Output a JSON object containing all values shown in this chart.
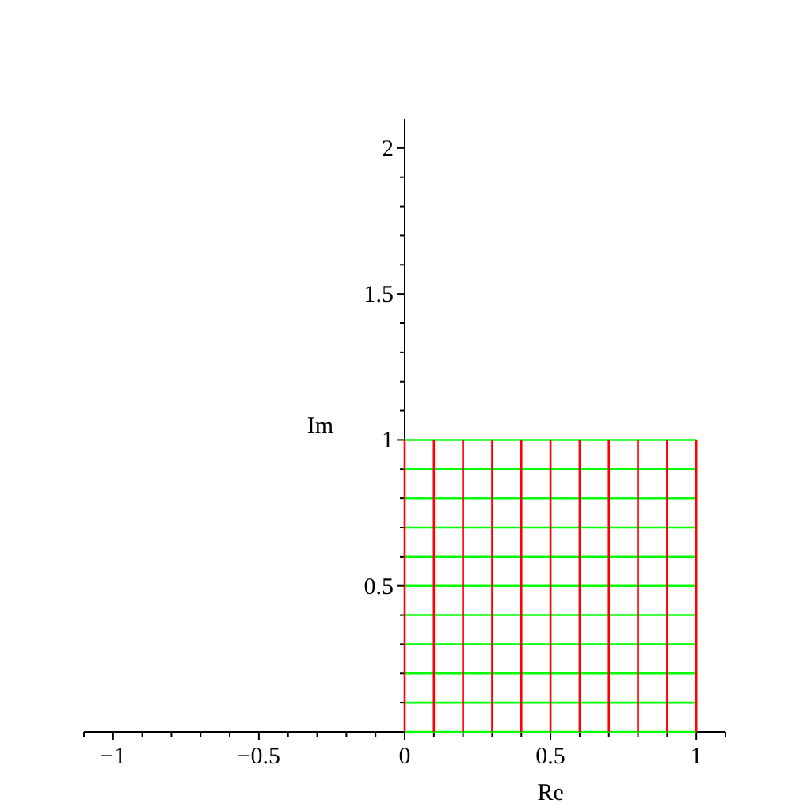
{
  "chart_data": {
    "type": "line",
    "xlabel": "Re",
    "ylabel": "Im",
    "xlim": [
      -1.1,
      1.1
    ],
    "ylim": [
      0,
      2.1
    ],
    "grid": false,
    "marker": "none",
    "line_style": "solid",
    "xticks": [
      {
        "value": -1.1,
        "label": null
      },
      {
        "value": -1,
        "label": "−1"
      },
      {
        "value": -0.9,
        "label": null
      },
      {
        "value": -0.8,
        "label": null
      },
      {
        "value": -0.7,
        "label": null
      },
      {
        "value": -0.6,
        "label": null
      },
      {
        "value": -0.5,
        "label": "−0.5"
      },
      {
        "value": -0.4,
        "label": null
      },
      {
        "value": -0.3,
        "label": null
      },
      {
        "value": -0.2,
        "label": null
      },
      {
        "value": -0.1,
        "label": null
      },
      0,
      {
        "value": 0.1,
        "label": null
      },
      {
        "value": 0.2,
        "label": null
      },
      {
        "value": 0.3,
        "label": null
      },
      {
        "value": 0.4,
        "label": null
      },
      0.5,
      {
        "value": 0.6,
        "label": null
      },
      {
        "value": 0.7,
        "label": null
      },
      {
        "value": 0.8,
        "label": null
      },
      {
        "value": 0.9,
        "label": null
      },
      1,
      {
        "value": 1.1,
        "label": null
      }
    ],
    "yticks": [
      {
        "value": 0.1,
        "label": null
      },
      {
        "value": 0.2,
        "label": null
      },
      {
        "value": 0.3,
        "label": null
      },
      {
        "value": 0.4,
        "label": null
      },
      0.5,
      {
        "value": 0.6,
        "label": null
      },
      {
        "value": 0.7,
        "label": null
      },
      {
        "value": 0.8,
        "label": null
      },
      {
        "value": 0.9,
        "label": null
      },
      1,
      {
        "value": 1.1,
        "label": null
      },
      {
        "value": 1.2,
        "label": null
      },
      {
        "value": 1.3,
        "label": null
      },
      {
        "value": 1.4,
        "label": null
      },
      1.5,
      {
        "value": 1.6,
        "label": null
      },
      {
        "value": 1.7,
        "label": null
      },
      {
        "value": 1.8,
        "label": null
      },
      {
        "value": 1.9,
        "label": null
      },
      2
    ],
    "series": [
      {
        "color": "#00ff00",
        "x": [
          0,
          1
        ],
        "values": [
          0,
          0
        ]
      },
      {
        "color": "#00ff00",
        "x": [
          0,
          1
        ],
        "values": [
          0.1,
          0.1
        ]
      },
      {
        "color": "#00ff00",
        "x": [
          0,
          1
        ],
        "values": [
          0.2,
          0.2
        ]
      },
      {
        "color": "#00ff00",
        "x": [
          0,
          1
        ],
        "values": [
          0.3,
          0.3
        ]
      },
      {
        "color": "#00ff00",
        "x": [
          0,
          1
        ],
        "values": [
          0.4,
          0.4
        ]
      },
      {
        "color": "#00ff00",
        "x": [
          0,
          1
        ],
        "values": [
          0.5,
          0.5
        ]
      },
      {
        "color": "#00ff00",
        "x": [
          0,
          1
        ],
        "values": [
          0.6,
          0.6
        ]
      },
      {
        "color": "#00ff00",
        "x": [
          0,
          1
        ],
        "values": [
          0.7,
          0.7
        ]
      },
      {
        "color": "#00ff00",
        "x": [
          0,
          1
        ],
        "values": [
          0.8,
          0.8
        ]
      },
      {
        "color": "#00ff00",
        "x": [
          0,
          1
        ],
        "values": [
          0.9,
          0.9
        ]
      },
      {
        "color": "#00ff00",
        "x": [
          0,
          1
        ],
        "values": [
          1,
          1
        ]
      },
      {
        "color": "#ff0000",
        "x": [
          0,
          0
        ],
        "values": [
          0,
          1
        ]
      },
      {
        "color": "#ff0000",
        "x": [
          0.1,
          0.1
        ],
        "values": [
          0,
          1
        ]
      },
      {
        "color": "#ff0000",
        "x": [
          0.2,
          0.2
        ],
        "values": [
          0,
          1
        ]
      },
      {
        "color": "#ff0000",
        "x": [
          0.3,
          0.3
        ],
        "values": [
          0,
          1
        ]
      },
      {
        "color": "#ff0000",
        "x": [
          0.4,
          0.4
        ],
        "values": [
          0,
          1
        ]
      },
      {
        "color": "#ff0000",
        "x": [
          0.5,
          0.5
        ],
        "values": [
          0,
          1
        ]
      },
      {
        "color": "#ff0000",
        "x": [
          0.6,
          0.6
        ],
        "values": [
          0,
          1
        ]
      },
      {
        "color": "#ff0000",
        "x": [
          0.7,
          0.7
        ],
        "values": [
          0,
          1
        ]
      },
      {
        "color": "#ff0000",
        "x": [
          0.8,
          0.8
        ],
        "values": [
          0,
          1
        ]
      },
      {
        "color": "#ff0000",
        "x": [
          0.9,
          0.9
        ],
        "values": [
          0,
          1
        ]
      },
      {
        "color": "#ff0000",
        "x": [
          1,
          1
        ],
        "values": [
          0,
          1
        ]
      }
    ]
  }
}
